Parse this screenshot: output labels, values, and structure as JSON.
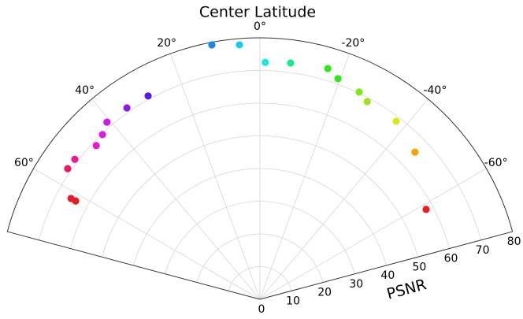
{
  "chart_data": {
    "type": "polar",
    "title": "Center Latitude",
    "ylabel": "PSNR",
    "x": [
      -61.6,
      -46.5,
      -37.4,
      -28.5,
      -25.6,
      -19.5,
      -16.4,
      -7.4,
      -1.3,
      4.6,
      10.7,
      28.8,
      34.8,
      40.8,
      43.7,
      46.8,
      52.9,
      55.8,
      61.9,
      61.9
    ],
    "values": [
      57.8,
      65.4,
      68.6,
      68.8,
      70.3,
      71.6,
      73.6,
      72.9,
      72.5,
      78.1,
      79.2,
      71.0,
      71.3,
      71.6,
      69.7,
      68.7,
      71.0,
      71.1,
      65.5,
      63.9
    ],
    "colors": [
      "#f21a1a",
      "#f5a300",
      "#dde81a",
      "#9ae81a",
      "#7be81a",
      "#2ee81a",
      "#2ee81a",
      "#1ae88a",
      "#1ae8e0",
      "#1ac9f0",
      "#1a86e8",
      "#5a1ae8",
      "#8a1ae8",
      "#c81ae8",
      "#e21ae8",
      "#e81ad0",
      "#e81a9a",
      "#e81a6a",
      "#e81a30",
      "#e81a1a"
    ],
    "xlim": [
      -75,
      75
    ],
    "xticks": [
      {
        "value": -60,
        "label": "-60°"
      },
      {
        "value": -40,
        "label": "-40°"
      },
      {
        "value": -20,
        "label": "-20°"
      },
      {
        "value": 0,
        "label": "0°"
      },
      {
        "value": 20,
        "label": "20°"
      },
      {
        "value": 40,
        "label": "40°"
      },
      {
        "value": 60,
        "label": "60°"
      }
    ],
    "ylim": [
      0,
      80
    ],
    "yticks": [
      0,
      10,
      20,
      30,
      40,
      50,
      60,
      70,
      80
    ],
    "grid": true
  }
}
